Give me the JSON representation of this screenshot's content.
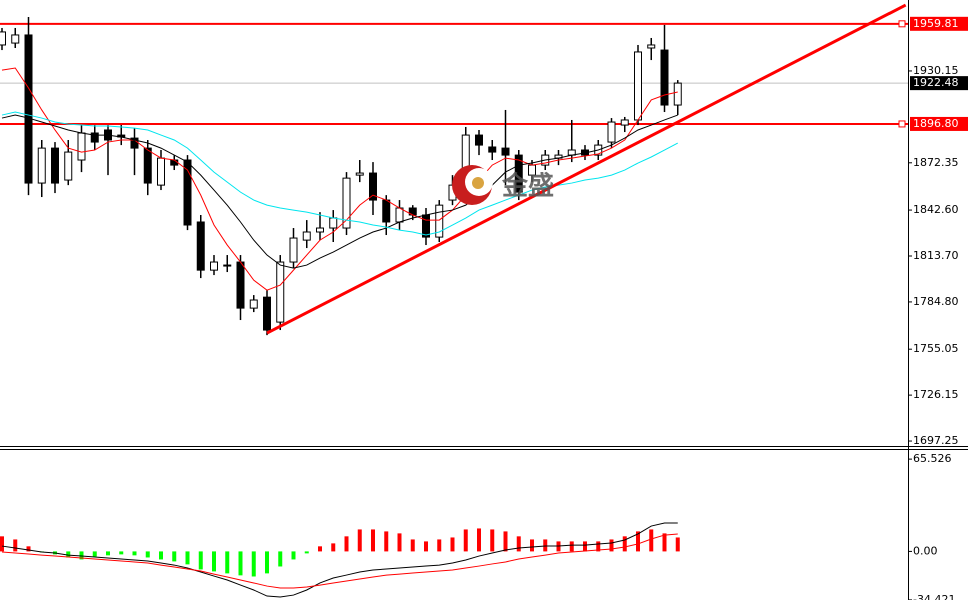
{
  "chart_data": [
    {
      "type": "candlestick",
      "open": [
        1946.5,
        1947.7,
        1952.8,
        1859.6,
        1881.6,
        1861.5,
        1874.1,
        1891.1,
        1893.0,
        1889.8,
        1887.9,
        1881.6,
        1858.3,
        1874.1,
        1874.1,
        1835.1,
        1804.8,
        1808.0,
        1809.9,
        1780.9,
        1787.8,
        1772.1,
        1809.9,
        1823.7,
        1828.8,
        1831.3,
        1831.3,
        1864.6,
        1865.9,
        1848.9,
        1835.1,
        1843.9,
        1839.5,
        1825.6,
        1848.9,
        1858.3,
        1889.8,
        1882.3,
        1881.6,
        1877.2,
        1864.6,
        1870.9,
        1875.3,
        1877.2,
        1880.4,
        1877.2,
        1885.4,
        1896.1,
        1899.3,
        1944.6,
        1943.3,
        1908.7
      ],
      "high": [
        1957.2,
        1957.2,
        1964.1,
        1886.7,
        1885.4,
        1886.7,
        1896.1,
        1896.1,
        1896.1,
        1896.1,
        1894.2,
        1886.7,
        1880.4,
        1877.2,
        1877.2,
        1839.5,
        1814.3,
        1814.3,
        1814.3,
        1789.1,
        1792.2,
        1814.3,
        1831.3,
        1836.3,
        1841.3,
        1842.6,
        1866.5,
        1874.1,
        1872.8,
        1852.0,
        1848.9,
        1845.7,
        1843.9,
        1848.9,
        1864.6,
        1894.9,
        1893.0,
        1886.7,
        1905.6,
        1880.4,
        1874.1,
        1880.4,
        1880.4,
        1899.3,
        1883.5,
        1886.7,
        1900.5,
        1901.2,
        1946.5,
        1950.9,
        1959.1,
        1924.4
      ],
      "low": [
        1943.3,
        1944.6,
        1852.0,
        1850.8,
        1853.3,
        1858.3,
        1866.5,
        1880.4,
        1864.6,
        1883.5,
        1864.6,
        1852.0,
        1855.2,
        1867.8,
        1830.0,
        1799.8,
        1801.7,
        1803.6,
        1773.4,
        1778.4,
        1763.9,
        1767.1,
        1806.1,
        1818.7,
        1823.7,
        1822.5,
        1826.9,
        1860.2,
        1839.5,
        1826.9,
        1830.0,
        1836.3,
        1820.6,
        1822.5,
        1845.7,
        1852.0,
        1877.2,
        1874.1,
        1858.3,
        1848.9,
        1860.2,
        1867.8,
        1870.9,
        1872.8,
        1874.1,
        1874.1,
        1881.6,
        1891.7,
        1896.1,
        1937.0,
        1904.3,
        1902.4
      ],
      "close": [
        1954.7,
        1952.8,
        1859.6,
        1881.6,
        1859.6,
        1879.1,
        1891.1,
        1885.4,
        1886.7,
        1888.6,
        1881.6,
        1859.6,
        1875.3,
        1870.9,
        1833.2,
        1804.8,
        1809.9,
        1808.0,
        1780.9,
        1786.0,
        1767.1,
        1809.9,
        1825.0,
        1828.8,
        1831.3,
        1837.6,
        1862.7,
        1865.9,
        1848.9,
        1835.1,
        1843.9,
        1839.5,
        1825.6,
        1845.7,
        1858.3,
        1889.8,
        1883.5,
        1879.1,
        1877.2,
        1853.9,
        1870.9,
        1877.2,
        1877.2,
        1880.4,
        1877.2,
        1883.5,
        1898.0,
        1899.3,
        1942.1,
        1946.5,
        1908.7,
        1922.5
      ],
      "up_color": "#ffffff",
      "down_color": "#000000",
      "lines": [
        {
          "color": "#ff0000",
          "values": [
            1930.7,
            1932.0,
            1919.4,
            1905.6,
            1893.0,
            1881.6,
            1879.1,
            1880.4,
            1885.4,
            1886.7,
            1886.7,
            1880.4,
            1875.3,
            1874.1,
            1867.8,
            1852.0,
            1833.2,
            1820.6,
            1809.9,
            1798.5,
            1792.2,
            1795.4,
            1804.8,
            1814.3,
            1823.7,
            1828.8,
            1836.3,
            1845.7,
            1852.0,
            1848.9,
            1843.9,
            1839.5,
            1836.3,
            1836.3,
            1842.6,
            1852.0,
            1861.5,
            1870.9,
            1875.3,
            1874.1,
            1870.9,
            1872.2,
            1874.1,
            1875.3,
            1876.6,
            1877.9,
            1881.6,
            1886.7,
            1899.3,
            1911.9,
            1915.0,
            1916.9
          ]
        },
        {
          "color": "#000000",
          "values": [
            1900.5,
            1902.4,
            1900.5,
            1898.0,
            1895.5,
            1893.0,
            1891.1,
            1889.8,
            1889.8,
            1888.6,
            1886.7,
            1884.8,
            1881.6,
            1877.2,
            1872.8,
            1864.6,
            1855.2,
            1845.7,
            1835.1,
            1823.7,
            1814.3,
            1808.0,
            1806.1,
            1808.0,
            1812.4,
            1816.2,
            1820.6,
            1825.0,
            1828.8,
            1831.3,
            1835.1,
            1837.6,
            1839.5,
            1841.3,
            1842.6,
            1845.7,
            1852.0,
            1858.3,
            1866.5,
            1870.9,
            1872.2,
            1874.1,
            1875.3,
            1877.2,
            1878.5,
            1880.4,
            1883.5,
            1887.9,
            1893.0,
            1896.1,
            1899.3,
            1902.4
          ]
        },
        {
          "color": "#00e5ee",
          "values": [
            1902.4,
            1904.3,
            1902.4,
            1900.5,
            1898.0,
            1896.7,
            1896.1,
            1895.5,
            1895.5,
            1894.9,
            1894.2,
            1893.0,
            1889.8,
            1886.7,
            1881.6,
            1874.1,
            1866.5,
            1860.2,
            1853.9,
            1848.9,
            1845.7,
            1843.9,
            1842.6,
            1841.3,
            1839.5,
            1837.6,
            1836.3,
            1835.1,
            1833.2,
            1831.9,
            1830.0,
            1828.8,
            1826.9,
            1828.8,
            1833.2,
            1837.6,
            1842.6,
            1845.7,
            1848.9,
            1852.0,
            1855.2,
            1857.1,
            1858.3,
            1859.6,
            1861.5,
            1862.7,
            1864.6,
            1867.8,
            1872.2,
            1876.0,
            1880.4,
            1884.8
          ]
        }
      ],
      "hlines": [
        {
          "value": 1959.81,
          "label": "1959.81",
          "color": "#ff0000",
          "label_color": "#ff0000"
        },
        {
          "value": 1896.8,
          "label": "1896.80",
          "color": "#ff0000",
          "label_color": "#ff0000"
        },
        {
          "value": 1922.48,
          "label": "1922.48",
          "color": "#c0c0c0",
          "label_color": "#000000"
        }
      ],
      "trendline": {
        "x": [
          20,
          68.2
        ],
        "y": [
          1765.2,
          1971.6
        ],
        "color": "#ff0000"
      },
      "watermark": "金盛",
      "ylim": [
        1693.5,
        1974.8
      ],
      "yticks": [
        1930.15,
        1872.35,
        {
          "value": 1842.6,
          "label": "1842.60"
        },
        {
          "value": 1813.7,
          "label": "1813.70"
        },
        {
          "value": 1784.8,
          "label": "1784.80"
        },
        1755.05,
        1726.15,
        1697.25
      ]
    },
    {
      "type": "macd",
      "histogram": [
        10.7,
        8.5,
        3.6,
        -0.7,
        -2.1,
        -4.3,
        -5.7,
        -3.6,
        -2.8,
        -2.1,
        -2.8,
        -4.3,
        -5.7,
        -7.1,
        -9.2,
        -12.8,
        -14.2,
        -15.6,
        -17.0,
        -17.8,
        -15.6,
        -10.7,
        -5.7,
        -1.4,
        3.6,
        5.7,
        10.7,
        15.6,
        15.6,
        14.2,
        12.8,
        8.5,
        7.1,
        8.5,
        9.9,
        15.6,
        16.3,
        15.6,
        14.2,
        10.7,
        8.5,
        8.5,
        7.1,
        7.1,
        7.1,
        7.1,
        8.5,
        10.7,
        14.2,
        15.6,
        12.8,
        9.9
      ],
      "positive_color": "#ff0000",
      "negative_color": "#00ff00",
      "lines": [
        {
          "color": "#000000",
          "values": [
            3.8,
            2.4,
            1.0,
            -0.4,
            -1.1,
            -2.6,
            -3.3,
            -4.0,
            -4.7,
            -5.4,
            -6.1,
            -6.8,
            -8.2,
            -9.7,
            -11.8,
            -14.6,
            -17.5,
            -20.3,
            -23.9,
            -27.4,
            -31.7,
            -32.4,
            -31.0,
            -27.4,
            -22.4,
            -18.9,
            -16.8,
            -14.6,
            -13.2,
            -12.5,
            -11.8,
            -11.1,
            -10.4,
            -9.7,
            -8.2,
            -6.1,
            -3.3,
            -1.1,
            1.0,
            2.4,
            3.1,
            3.8,
            3.8,
            4.5,
            4.5,
            5.3,
            6.0,
            8.1,
            12.4,
            18.0,
            20.2,
            20.2
          ]
        },
        {
          "color": "#ff0000",
          "values": [
            -0.4,
            -1.1,
            -1.8,
            -2.6,
            -3.3,
            -4.0,
            -4.7,
            -5.4,
            -6.1,
            -6.8,
            -7.5,
            -8.2,
            -9.7,
            -11.1,
            -12.5,
            -13.9,
            -16.1,
            -18.2,
            -20.3,
            -22.4,
            -24.6,
            -26.0,
            -26.0,
            -25.3,
            -23.9,
            -22.4,
            -21.0,
            -19.6,
            -18.2,
            -16.8,
            -16.1,
            -15.3,
            -14.6,
            -13.9,
            -13.2,
            -11.8,
            -10.4,
            -8.9,
            -7.5,
            -5.4,
            -4.0,
            -2.6,
            -1.1,
            -0.4,
            0.3,
            1.0,
            1.7,
            3.1,
            5.3,
            8.8,
            11.6,
            12.4
          ]
        }
      ],
      "ylim": [
        -34.5,
        72
      ],
      "yticks": [
        65.526,
        {
          "value": 0,
          "label": "0.00"
        },
        -34.421
      ]
    }
  ]
}
